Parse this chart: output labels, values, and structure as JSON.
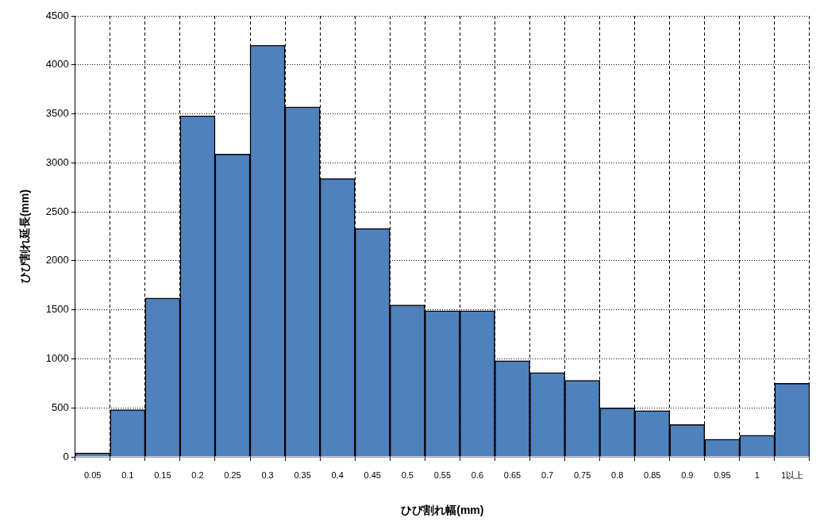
{
  "chart_data": {
    "type": "bar",
    "xlabel": "ひび割れ幅(mm)",
    "ylabel": "ひび割れ延長(mm)",
    "categories": [
      "0.05",
      "0.1",
      "0.15",
      "0.2",
      "0.25",
      "0.3",
      "0.35",
      "0.4",
      "0.45",
      "0.5",
      "0.55",
      "0.6",
      "0.65",
      "0.7",
      "0.75",
      "0.8",
      "0.85",
      "0.9",
      "0.95",
      "1",
      "1以上"
    ],
    "values": [
      40,
      480,
      1620,
      3480,
      3090,
      4200,
      3570,
      2840,
      2330,
      1550,
      1490,
      1490,
      980,
      860,
      780,
      500,
      470,
      330,
      180,
      220,
      750
    ],
    "color": "#4f81bd",
    "ylim": [
      0,
      4500
    ],
    "yticks": [
      0,
      500,
      1000,
      1500,
      2000,
      2500,
      3000,
      3500,
      4000,
      4500
    ],
    "grid": true,
    "legend": false
  }
}
